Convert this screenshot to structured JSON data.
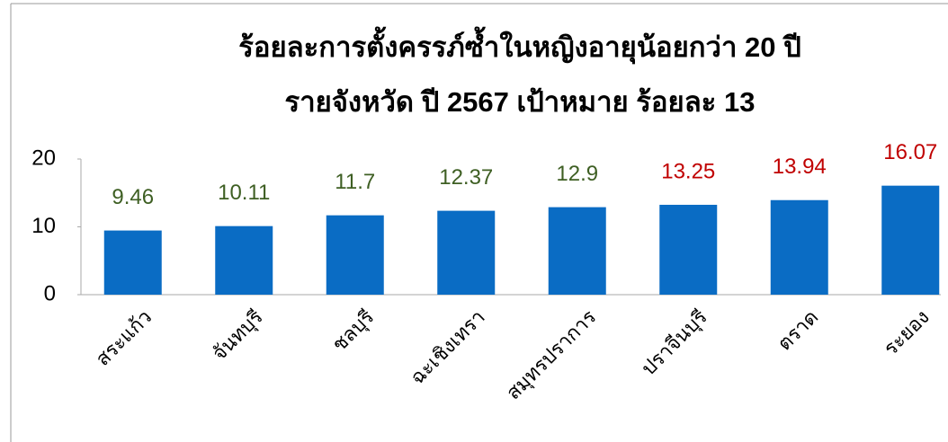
{
  "chart_data": {
    "type": "bar",
    "title": [
      "ร้อยละการตั้งครรภ์ซ้ำในหญิงอายุน้อยกว่า 20 ปี",
      "รายจังหวัด ปี 2567 เป้าหมาย ร้อยละ 13"
    ],
    "categories": [
      "สระแก้ว",
      "จันทบุรี",
      "ชลบุรี",
      "ฉะเชิงเทรา",
      "สมุทรปราการ",
      "ปราจีนบุรี",
      "ตราด",
      "ระยอง"
    ],
    "values": [
      9.46,
      10.11,
      11.7,
      12.37,
      12.9,
      13.25,
      13.94,
      16.07
    ],
    "color": "#0a6cc4",
    "label_colors": [
      "#3e5f23",
      "#3e5f23",
      "#3e5f23",
      "#3e5f23",
      "#3e5f23",
      "#c00000",
      "#c00000",
      "#c00000"
    ],
    "ylim": [
      0,
      20
    ],
    "yticks": [
      0,
      10,
      20
    ],
    "grid": false
  }
}
